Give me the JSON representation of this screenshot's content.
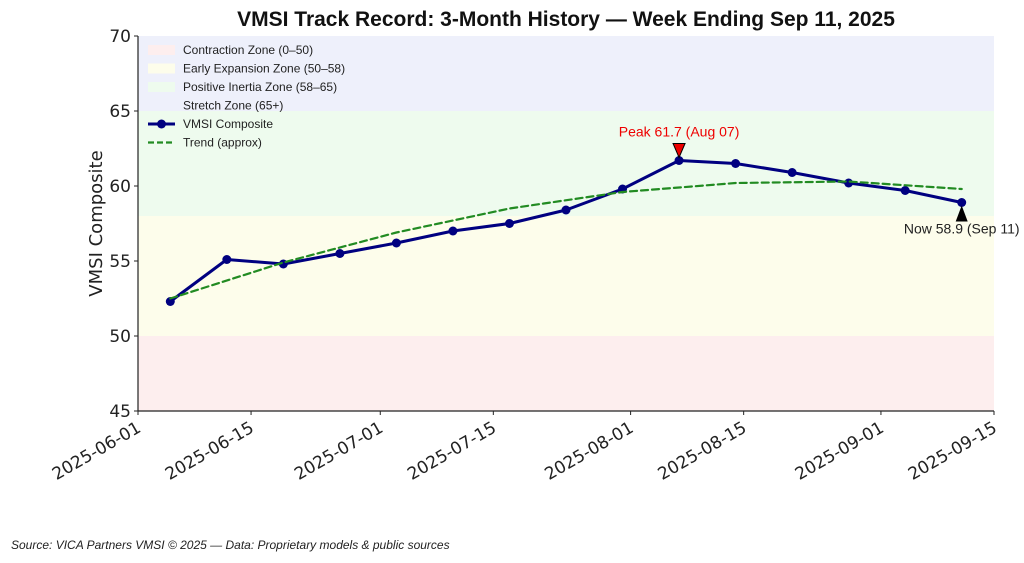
{
  "chart_data": {
    "type": "line",
    "title": "VMSI Track Record: 3-Month History — Week Ending Sep 11, 2025",
    "xlabel": "",
    "ylabel": "VMSI Composite",
    "ylim": [
      45,
      70
    ],
    "xlim": [
      "2025-06-01",
      "2025-09-15"
    ],
    "yticks": [
      45,
      50,
      55,
      60,
      65,
      70
    ],
    "xticks": [
      "2025-06-01",
      "2025-06-15",
      "2025-07-01",
      "2025-07-15",
      "2025-08-01",
      "2025-08-15",
      "2025-09-01",
      "2025-09-15"
    ],
    "grid": false,
    "legend_position": "top-left",
    "zones": [
      {
        "label": "Contraction Zone (0–50)",
        "from": 45,
        "to": 50,
        "color": "#fdeeee"
      },
      {
        "label": "Early Expansion Zone (50–58)",
        "from": 50,
        "to": 58,
        "color": "#fdfdeb"
      },
      {
        "label": "Positive Inertia Zone (58–65)",
        "from": 58,
        "to": 65,
        "color": "#eefbee"
      },
      {
        "label": "Stretch Zone (65+)",
        "from": 65,
        "to": 70,
        "color": "#eef0fb"
      }
    ],
    "series": [
      {
        "name": "VMSI Composite",
        "color": "#000080",
        "x": [
          "2025-06-05",
          "2025-06-12",
          "2025-06-19",
          "2025-06-26",
          "2025-07-03",
          "2025-07-10",
          "2025-07-17",
          "2025-07-24",
          "2025-07-31",
          "2025-08-07",
          "2025-08-14",
          "2025-08-21",
          "2025-08-28",
          "2025-09-04",
          "2025-09-11"
        ],
        "values": [
          52.3,
          55.1,
          54.8,
          55.5,
          56.2,
          57.0,
          57.5,
          58.4,
          59.8,
          61.7,
          61.5,
          60.9,
          60.2,
          59.7,
          58.9
        ]
      },
      {
        "name": "Trend (approx)",
        "color": "#228b22",
        "style": "dashed",
        "x": [
          "2025-06-05",
          "2025-06-19",
          "2025-07-03",
          "2025-07-17",
          "2025-07-31",
          "2025-08-14",
          "2025-08-28",
          "2025-09-11"
        ],
        "values": [
          52.5,
          54.9,
          56.9,
          58.5,
          59.6,
          60.2,
          60.3,
          59.8
        ]
      }
    ],
    "annotations": [
      {
        "text": "Peak 61.7 (Aug 07)",
        "x": "2025-08-07",
        "y": 61.7,
        "color": "#ee0000"
      },
      {
        "text": "Now 58.9 (Sep 11)",
        "x": "2025-09-11",
        "y": 58.9,
        "color": "#000000"
      }
    ]
  },
  "source": "Source: VICA Partners VMSI © 2025 — Data: Proprietary models & public sources"
}
